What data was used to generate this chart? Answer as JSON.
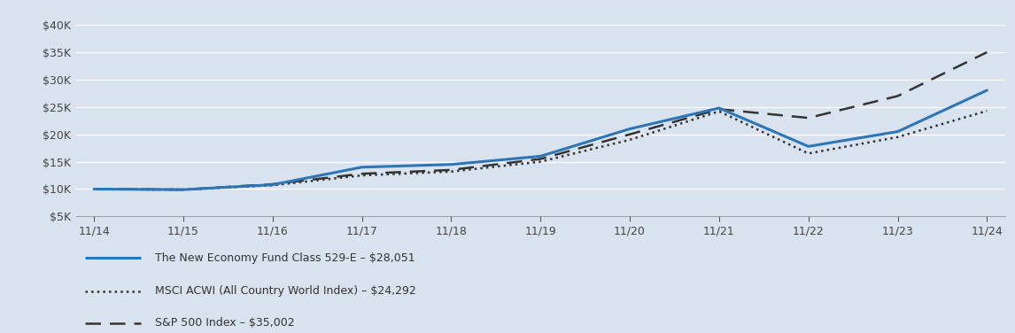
{
  "x_labels": [
    "11/14",
    "11/15",
    "11/16",
    "11/17",
    "11/18",
    "11/19",
    "11/20",
    "11/21",
    "11/22",
    "11/23",
    "11/24"
  ],
  "x_values": [
    0,
    1,
    2,
    3,
    4,
    5,
    6,
    7,
    8,
    9,
    10
  ],
  "fund_values": [
    10000,
    9900,
    10800,
    14000,
    14500,
    16000,
    21000,
    24800,
    17800,
    20500,
    28051
  ],
  "msci_values": [
    10000,
    9900,
    10700,
    12500,
    13200,
    15000,
    19000,
    24200,
    16500,
    19500,
    24292
  ],
  "sp500_values": [
    10000,
    9900,
    10900,
    12800,
    13500,
    15500,
    20000,
    24600,
    23000,
    27000,
    35002
  ],
  "fund_color": "#2E75B6",
  "msci_color": "#333333",
  "sp500_color": "#333333",
  "bg_color": "#d9e3f0",
  "grid_color": "#ffffff",
  "yticks": [
    5000,
    10000,
    15000,
    20000,
    25000,
    30000,
    35000,
    40000
  ],
  "ylim": [
    5000,
    41500
  ],
  "legend_labels": [
    "The New Economy Fund Class 529-E – $28,051",
    "MSCI ACWI (All Country World Index) – $24,292",
    "S&P 500 Index – $35,002"
  ],
  "fund_linewidth": 2.2,
  "msci_linewidth": 1.8,
  "sp500_linewidth": 1.8,
  "tick_fontsize": 9,
  "legend_fontsize": 9
}
